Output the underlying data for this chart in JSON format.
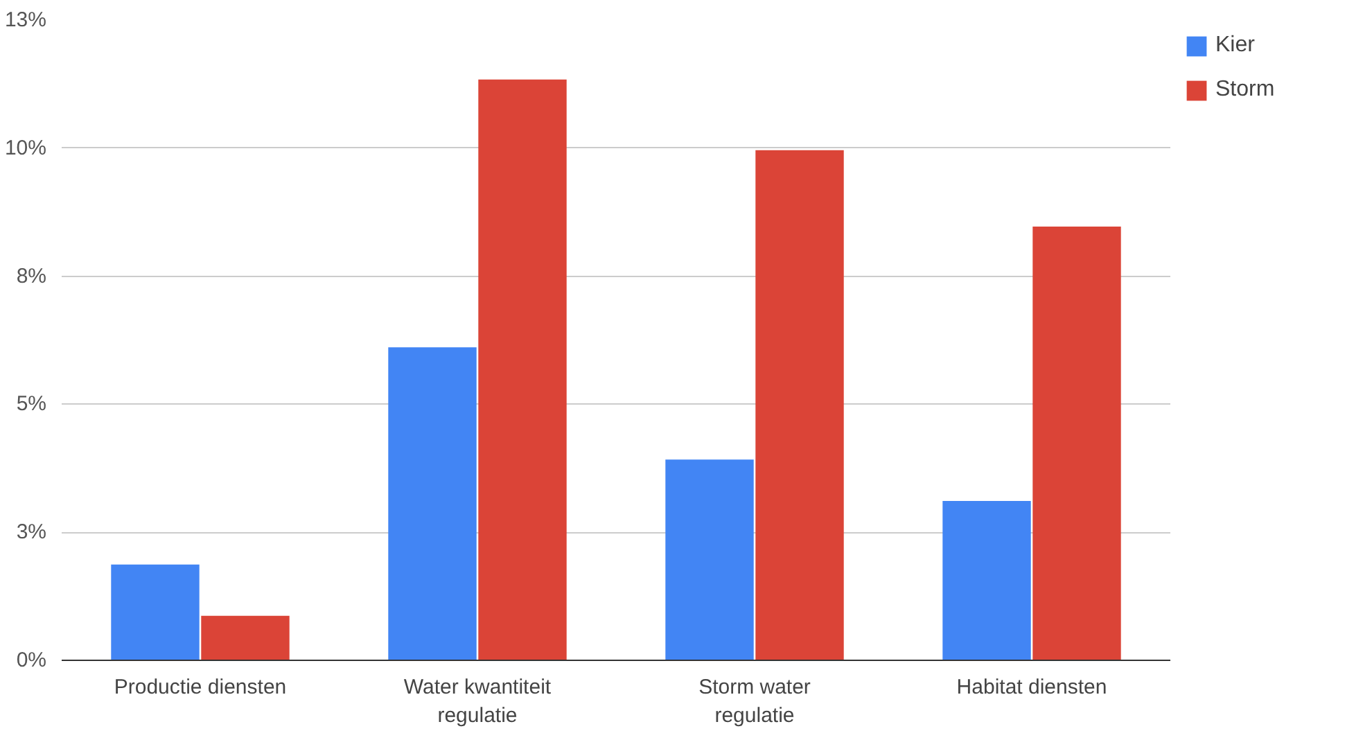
{
  "chart_data": {
    "type": "bar",
    "categories": [
      "Productie diensten",
      "Water kwantiteit regulatie",
      "Storm water regulatie",
      "Habitat diensten"
    ],
    "series": [
      {
        "name": "Kier",
        "color": "#4285f4",
        "values": [
          1.87,
          6.11,
          3.92,
          3.11
        ]
      },
      {
        "name": "Storm",
        "color": "#db4437",
        "values": [
          0.87,
          11.34,
          9.96,
          8.47
        ]
      }
    ],
    "ylim": [
      0,
      12.5
    ],
    "yticks": [
      {
        "value": 0,
        "label": "0%"
      },
      {
        "value": 2.5,
        "label": "3%"
      },
      {
        "value": 5,
        "label": "5%"
      },
      {
        "value": 7.5,
        "label": "8%"
      },
      {
        "value": 10,
        "label": "10%"
      },
      {
        "value": 12.5,
        "label": "13%"
      }
    ],
    "grid": "y",
    "legend": "top right"
  }
}
